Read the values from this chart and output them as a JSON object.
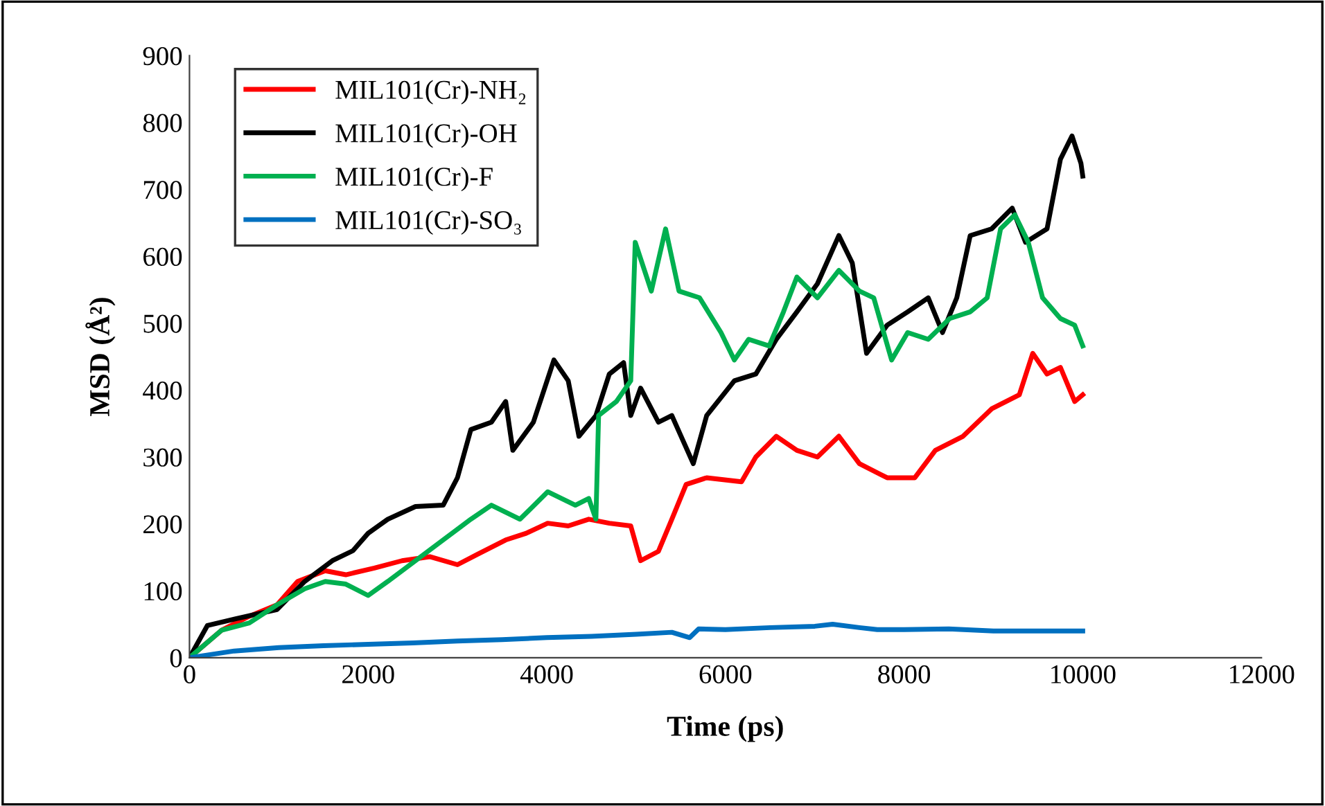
{
  "chart_data": {
    "type": "line",
    "xlabel": "Time (ps)",
    "ylabel": "MSD (Å²)",
    "xlim": [
      0,
      12000
    ],
    "ylim": [
      0,
      900
    ],
    "xticks": [
      0,
      2000,
      4000,
      6000,
      8000,
      10000,
      12000
    ],
    "yticks": [
      0,
      100,
      200,
      300,
      400,
      500,
      600,
      700,
      800,
      900
    ],
    "grid": false,
    "legend": "top left",
    "marker": "none",
    "line_style": "solid",
    "series": [
      {
        "name": "MIL101(Cr)-NH₂",
        "color": "#ff0000",
        "x": [
          0,
          360,
          670,
          980,
          1210,
          1520,
          1750,
          2070,
          2380,
          2690,
          3000,
          3230,
          3540,
          3770,
          4010,
          4240,
          4470,
          4700,
          4940,
          5050,
          5250,
          5400,
          5560,
          5790,
          6180,
          6340,
          6570,
          6800,
          7030,
          7270,
          7500,
          7810,
          8120,
          8350,
          8660,
          8980,
          9290,
          9440,
          9600,
          9750,
          9910,
          10000
        ],
        "values": [
          0,
          41,
          62,
          79,
          114,
          130,
          124,
          134,
          145,
          151,
          139,
          155,
          176,
          186,
          201,
          197,
          207,
          201,
          197,
          145,
          159,
          207,
          259,
          269,
          263,
          300,
          331,
          310,
          300,
          331,
          290,
          269,
          269,
          310,
          331,
          372,
          393,
          455,
          424,
          434,
          383,
          393
        ]
      },
      {
        "name": "MIL101(Cr)-OH",
        "color": "#000000",
        "x": [
          0,
          200,
          510,
          980,
          1290,
          1600,
          1830,
          2000,
          2220,
          2530,
          2840,
          3000,
          3150,
          3380,
          3540,
          3620,
          3850,
          4080,
          4240,
          4360,
          4550,
          4700,
          4860,
          4940,
          5050,
          5250,
          5400,
          5640,
          5790,
          6100,
          6340,
          6570,
          6800,
          7030,
          7270,
          7420,
          7580,
          7810,
          8040,
          8270,
          8430,
          8590,
          8740,
          8980,
          9210,
          9360,
          9600,
          9750,
          9880,
          9980,
          10000
        ],
        "values": [
          0,
          48,
          58,
          72,
          114,
          145,
          160,
          186,
          207,
          226,
          228,
          269,
          341,
          352,
          383,
          310,
          352,
          445,
          414,
          331,
          362,
          424,
          441,
          362,
          403,
          352,
          362,
          290,
          362,
          414,
          424,
          476,
          517,
          559,
          631,
          590,
          455,
          497,
          517,
          538,
          486,
          538,
          631,
          641,
          672,
          621,
          641,
          745,
          780,
          739,
          720
        ]
      },
      {
        "name": "MIL101(Cr)-F",
        "color": "#00b050",
        "x": [
          0,
          360,
          670,
          980,
          1290,
          1520,
          1750,
          2000,
          2220,
          2530,
          2840,
          3150,
          3380,
          3700,
          4010,
          4320,
          4470,
          4550,
          4580,
          4780,
          4940,
          4990,
          5170,
          5330,
          5480,
          5710,
          5950,
          6100,
          6260,
          6490,
          6650,
          6800,
          7030,
          7270,
          7500,
          7660,
          7860,
          8040,
          8270,
          8510,
          8740,
          8930,
          9080,
          9240,
          9390,
          9550,
          9750,
          9910,
          10000
        ],
        "values": [
          0,
          41,
          52,
          79,
          103,
          114,
          110,
          93,
          114,
          145,
          176,
          207,
          228,
          207,
          248,
          228,
          238,
          207,
          362,
          383,
          414,
          621,
          548,
          641,
          548,
          538,
          486,
          445,
          476,
          466,
          517,
          569,
          538,
          579,
          548,
          538,
          445,
          486,
          476,
          507,
          517,
          538,
          641,
          662,
          621,
          538,
          507,
          497,
          466
        ]
      },
      {
        "name": "MIL101(Cr)-SO₃",
        "color": "#0070c0",
        "x": [
          0,
          500,
          1000,
          1500,
          2000,
          2500,
          3000,
          3500,
          4000,
          4500,
          5000,
          5400,
          5600,
          5700,
          6000,
          6500,
          7000,
          7200,
          7500,
          7700,
          8000,
          8500,
          9000,
          9500,
          10000
        ],
        "values": [
          0,
          10,
          15,
          18,
          20,
          22,
          25,
          27,
          30,
          32,
          35,
          38,
          30,
          43,
          42,
          45,
          47,
          50,
          45,
          42,
          42,
          43,
          40,
          40,
          40
        ]
      }
    ]
  }
}
